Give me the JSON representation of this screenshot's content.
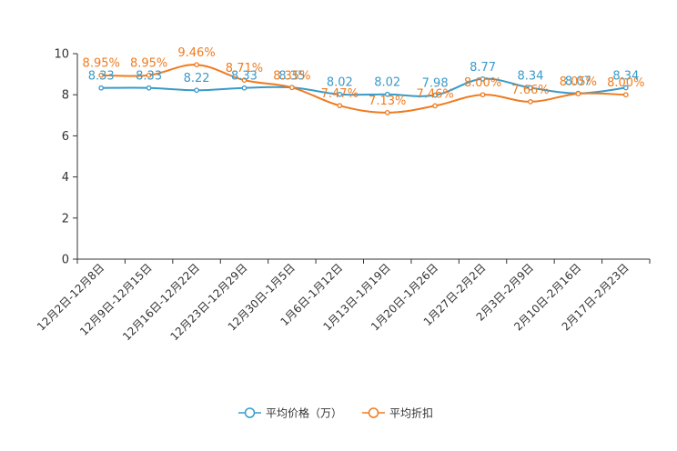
{
  "chart_data": {
    "type": "line",
    "categories": [
      "12月2日-12月8日",
      "12月9日-12月15日",
      "12月16日-12月22日",
      "12月23日-12月29日",
      "12月30日-1月5日",
      "1月6日-1月12日",
      "1月13日-1月19日",
      "1月20日-1月26日",
      "1月27日-2月2日",
      "2月3日-2月9日",
      "2月10日-2月16日",
      "2月17日-2月23日"
    ],
    "series": [
      {
        "name": "平均价格（万）",
        "color": "#3a9ac9",
        "values": [
          8.33,
          8.33,
          8.22,
          8.33,
          8.35,
          8.02,
          8.02,
          7.98,
          8.77,
          8.34,
          8.07,
          8.34
        ],
        "labels": [
          "8.33",
          "8.33",
          "8.22",
          "8.33",
          "8.35",
          "8.02",
          "8.02",
          "7.98",
          "8.77",
          "8.34",
          "8.07",
          "8.34"
        ]
      },
      {
        "name": "平均折扣",
        "color": "#f07b1f",
        "values": [
          8.95,
          8.95,
          9.46,
          8.71,
          8.35,
          7.47,
          7.13,
          7.46,
          8.0,
          7.66,
          8.05,
          8.0
        ],
        "labels": [
          "8.95%",
          "8.95%",
          "9.46%",
          "8.71%",
          "8.35%",
          "7.47%",
          "7.13%",
          "7.46%",
          "8.00%",
          "7.66%",
          "8.05%",
          "8.00%"
        ]
      }
    ],
    "y_ticks": [
      "0",
      "2",
      "4",
      "6",
      "8",
      "10"
    ],
    "ylim": [
      0,
      10
    ],
    "legend_position": "bottom-center",
    "title": "",
    "xlabel": "",
    "ylabel": ""
  }
}
